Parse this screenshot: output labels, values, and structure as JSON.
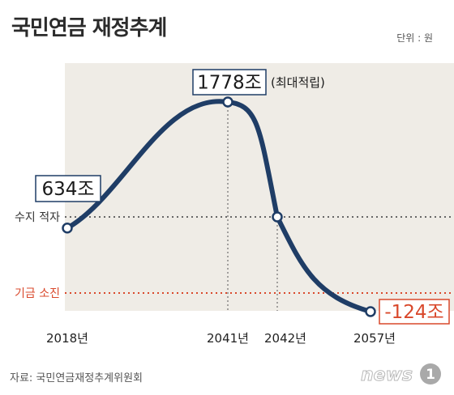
{
  "title": "국민연금 재정추계",
  "unit": "단위 : 원",
  "source": "자료: 국민연금재정추계위원회",
  "logo": {
    "text": "news",
    "mark": "1"
  },
  "colors": {
    "panel": "#efece6",
    "line": "#1f3d66",
    "deficit_line": "#666666",
    "depletion_line": "#d9482b",
    "peak_box": "#1f3d66",
    "negative_box": "#d9482b"
  },
  "chart_data": {
    "type": "line",
    "x": [
      2018,
      2041,
      2042,
      2057
    ],
    "values": [
      634,
      1778,
      null,
      -124
    ],
    "point_labels": [
      "634조",
      "1778조",
      "",
      "-124조"
    ],
    "peak_note": "(최대적립)",
    "x_tick_labels": [
      "2018년",
      "2041년",
      "2042년",
      "2057년"
    ],
    "reference_lines": [
      {
        "label": "수지 적자",
        "style": "dotted"
      },
      {
        "label": "기금 소진",
        "style": "dotted"
      }
    ]
  }
}
